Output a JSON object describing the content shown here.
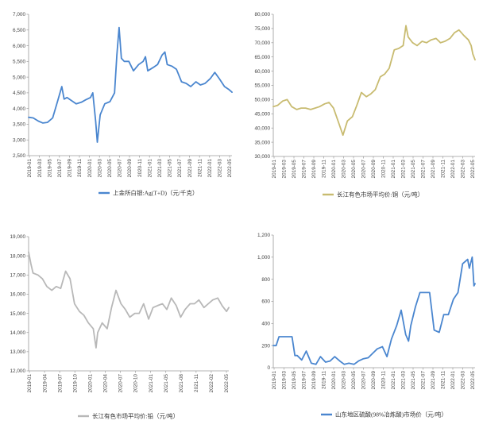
{
  "chart_data": [
    {
      "type": "line",
      "id": "silver",
      "legend": "上金所白银:Ag(T+D)（元/千克）",
      "color": "#4a86cf",
      "ylim": [
        2500,
        7000
      ],
      "yticks": [
        "2,500",
        "3,000",
        "3,500",
        "4,000",
        "4,500",
        "5,000",
        "5,500",
        "6,000",
        "6,500",
        "7,000"
      ],
      "xticks": [
        "2019-01",
        "2019-03",
        "2019-05",
        "2019-07",
        "2019-09",
        "2019-11",
        "2020-01",
        "2020-03",
        "2020-05",
        "2020-07",
        "2020-09",
        "2020-11",
        "2021-01",
        "2021-03",
        "2021-05",
        "2021-07",
        "2021-09",
        "2021-11",
        "2022-01",
        "2022-03",
        "2022-05"
      ],
      "xrange": [
        2019.0,
        2022.55
      ],
      "x": [
        2019.0,
        2019.08,
        2019.17,
        2019.25,
        2019.33,
        2019.42,
        2019.5,
        2019.58,
        2019.62,
        2019.67,
        2019.75,
        2019.83,
        2019.92,
        2020.0,
        2020.08,
        2020.12,
        2020.17,
        2020.2,
        2020.25,
        2020.33,
        2020.42,
        2020.5,
        2020.54,
        2020.58,
        2020.62,
        2020.67,
        2020.75,
        2020.83,
        2020.92,
        2021.0,
        2021.04,
        2021.08,
        2021.17,
        2021.25,
        2021.33,
        2021.38,
        2021.42,
        2021.5,
        2021.58,
        2021.67,
        2021.75,
        2021.83,
        2021.92,
        2022.0,
        2022.08,
        2022.17,
        2022.25,
        2022.33,
        2022.42,
        2022.5,
        2022.55
      ],
      "y": [
        3720,
        3700,
        3600,
        3540,
        3560,
        3700,
        4200,
        4700,
        4300,
        4350,
        4250,
        4150,
        4200,
        4280,
        4350,
        4500,
        3600,
        2930,
        3800,
        4150,
        4220,
        4500,
        5700,
        6580,
        5600,
        5500,
        5500,
        5200,
        5400,
        5500,
        5650,
        5200,
        5300,
        5400,
        5700,
        5800,
        5400,
        5350,
        5250,
        4850,
        4800,
        4700,
        4850,
        4750,
        4800,
        4950,
        5150,
        4950,
        4700,
        4600,
        4520
      ]
    },
    {
      "type": "line",
      "id": "copper",
      "legend": "长江有色市场平均价:铜（元/吨）",
      "color": "#c8bb70",
      "ylim": [
        30000,
        80000
      ],
      "yticks": [
        "30,000",
        "35,000",
        "40,000",
        "45,000",
        "50,000",
        "55,000",
        "60,000",
        "65,000",
        "70,000",
        "75,000",
        "80,000"
      ],
      "xticks": [
        "2019-01",
        "2019-03",
        "2019-05",
        "2019-07",
        "2019-09",
        "2019-11",
        "2020-01",
        "2020-03",
        "2020-05",
        "2020-07",
        "2020-09",
        "2020-11",
        "2021-01",
        "2021-03",
        "2021-05",
        "2021-07",
        "2021-09",
        "2021-11",
        "2022-01",
        "2022-03",
        "2022-05"
      ],
      "xrange": [
        2019.0,
        2022.62
      ],
      "x": [
        2019.0,
        2019.08,
        2019.17,
        2019.25,
        2019.33,
        2019.42,
        2019.5,
        2019.58,
        2019.67,
        2019.75,
        2019.83,
        2019.92,
        2020.0,
        2020.08,
        2020.17,
        2020.25,
        2020.33,
        2020.42,
        2020.5,
        2020.58,
        2020.67,
        2020.75,
        2020.83,
        2020.92,
        2021.0,
        2021.08,
        2021.17,
        2021.25,
        2021.33,
        2021.38,
        2021.42,
        2021.5,
        2021.58,
        2021.67,
        2021.75,
        2021.83,
        2021.92,
        2022.0,
        2022.08,
        2022.17,
        2022.25,
        2022.33,
        2022.42,
        2022.5,
        2022.55,
        2022.58,
        2022.62
      ],
      "y": [
        47500,
        48000,
        49500,
        50000,
        47500,
        46500,
        47000,
        47000,
        46500,
        47000,
        47500,
        48500,
        49000,
        47000,
        42000,
        37500,
        42500,
        44000,
        48000,
        52500,
        51000,
        52000,
        53500,
        58000,
        59000,
        61000,
        67500,
        68000,
        69000,
        76000,
        72000,
        70000,
        69000,
        70500,
        70000,
        71000,
        71500,
        70000,
        70500,
        71500,
        73500,
        74500,
        72500,
        71000,
        69000,
        66000,
        64000
      ]
    },
    {
      "type": "line",
      "id": "lead",
      "legend": "长江有色市场平均价:铅（元/吨）",
      "color": "#b8b8b8",
      "ylim": [
        12000,
        19000
      ],
      "yticks": [
        "12,000",
        "13,000",
        "14,000",
        "15,000",
        "16,000",
        "17,000",
        "18,000",
        "19,000"
      ],
      "xticks": [
        "2019-01",
        "2019-04",
        "2019-07",
        "2019-10",
        "2020-01",
        "2020-04",
        "2020-07",
        "2020-10",
        "2021-01",
        "2021-05",
        "2021-08",
        "2021-11",
        "2022-02",
        "2022-05"
      ],
      "xrange": [
        2019.0,
        2022.62
      ],
      "x": [
        2019.0,
        2019.04,
        2019.08,
        2019.17,
        2019.25,
        2019.33,
        2019.42,
        2019.5,
        2019.58,
        2019.67,
        2019.75,
        2019.83,
        2019.92,
        2020.0,
        2020.08,
        2020.17,
        2020.22,
        2020.25,
        2020.33,
        2020.42,
        2020.5,
        2020.58,
        2020.67,
        2020.75,
        2020.83,
        2020.92,
        2021.0,
        2021.08,
        2021.17,
        2021.25,
        2021.33,
        2021.42,
        2021.5,
        2021.58,
        2021.67,
        2021.75,
        2021.83,
        2021.92,
        2022.0,
        2022.08,
        2022.17,
        2022.25,
        2022.33,
        2022.42,
        2022.5,
        2022.58,
        2022.62
      ],
      "y": [
        18200,
        17600,
        17100,
        17000,
        16800,
        16400,
        16200,
        16400,
        16300,
        17200,
        16800,
        15500,
        15100,
        14900,
        14500,
        14200,
        13200,
        14000,
        14500,
        14200,
        15300,
        16200,
        15500,
        15200,
        14800,
        15000,
        15000,
        15500,
        14700,
        15300,
        15400,
        15500,
        15200,
        15800,
        15400,
        14800,
        15200,
        15500,
        15500,
        15700,
        15300,
        15500,
        15700,
        15800,
        15400,
        15100,
        15300
      ]
    },
    {
      "type": "line",
      "id": "sulfuric-acid",
      "legend": "山东地区硫酸(98%冶炼酸)市场价（元/吨）",
      "color": "#4a86cf",
      "ylim": [
        0,
        1200
      ],
      "yticks": [
        "0",
        "200",
        "400",
        "600",
        "800",
        "1,000",
        "1,200"
      ],
      "xticks": [
        "2019-01",
        "2019-03",
        "2019-05",
        "2019-07",
        "2019-09",
        "2019-11",
        "2020-01",
        "2020-03",
        "2020-05",
        "2020-07",
        "2020-09",
        "2020-11",
        "2021-01",
        "2021-03",
        "2021-05",
        "2021-07",
        "2021-09",
        "2021-11",
        "2022-01",
        "2022-03",
        "2022-05"
      ],
      "xrange": [
        2019.0,
        2022.55
      ],
      "x": [
        2019.0,
        2019.05,
        2019.1,
        2019.33,
        2019.38,
        2019.42,
        2019.5,
        2019.58,
        2019.67,
        2019.75,
        2019.83,
        2019.92,
        2020.0,
        2020.08,
        2020.17,
        2020.25,
        2020.33,
        2020.42,
        2020.5,
        2020.58,
        2020.67,
        2020.75,
        2020.83,
        2020.92,
        2021.0,
        2021.08,
        2021.17,
        2021.25,
        2021.33,
        2021.38,
        2021.42,
        2021.5,
        2021.58,
        2021.67,
        2021.75,
        2021.83,
        2021.92,
        2022.0,
        2022.08,
        2022.17,
        2022.25,
        2022.33,
        2022.42,
        2022.45,
        2022.5,
        2022.53,
        2022.55
      ],
      "y": [
        200,
        200,
        280,
        280,
        110,
        110,
        70,
        150,
        40,
        30,
        100,
        50,
        60,
        100,
        60,
        30,
        40,
        30,
        60,
        80,
        90,
        130,
        170,
        190,
        100,
        260,
        380,
        520,
        300,
        240,
        380,
        550,
        680,
        680,
        680,
        340,
        320,
        480,
        480,
        620,
        680,
        940,
        980,
        900,
        1000,
        740,
        760
      ]
    }
  ]
}
